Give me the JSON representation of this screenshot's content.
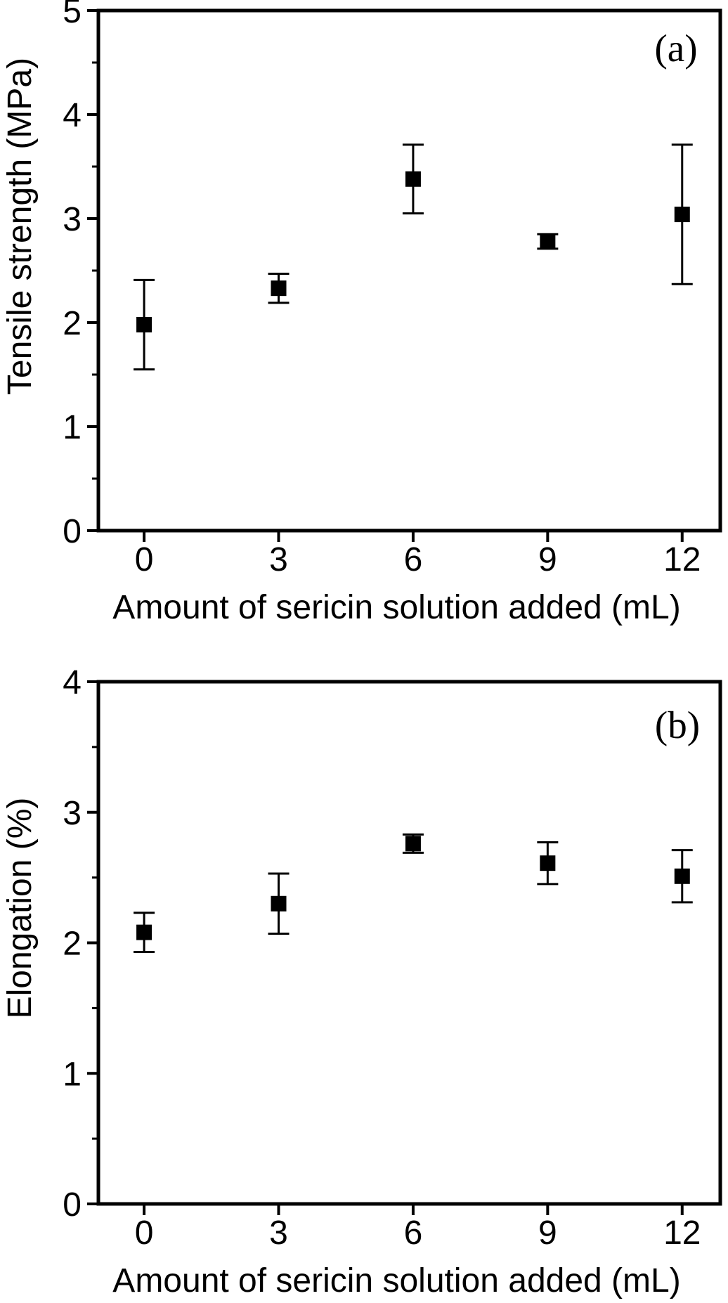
{
  "figure": {
    "background": "#ffffff",
    "foreground": "#000000",
    "panel_count": 2
  },
  "chart_data": [
    {
      "panel_label": "(a)",
      "type": "scatter",
      "title": "",
      "xlabel": "Amount of sericin solution added (mL)",
      "ylabel": "Tensile strength (MPa)",
      "x": [
        0,
        3,
        6,
        9,
        12
      ],
      "y": [
        1.98,
        2.33,
        3.38,
        2.78,
        3.04
      ],
      "y_err": [
        0.43,
        0.14,
        0.33,
        0.07,
        0.67
      ],
      "xlim": [
        -1.02,
        12.85
      ],
      "ylim": [
        0,
        5
      ],
      "x_ticks": [
        0,
        3,
        6,
        9,
        12
      ],
      "x_tick_labels": [
        "0",
        "3",
        "6",
        "9",
        "12"
      ],
      "y_ticks": [
        0,
        1,
        2,
        3,
        4,
        5
      ],
      "y_tick_labels": [
        "0",
        "1",
        "2",
        "3",
        "4",
        "5"
      ],
      "y_minor_ticks": [
        0.5,
        1.5,
        2.5,
        3.5,
        4.5
      ],
      "marker": "filled-square",
      "marker_color": "#000000",
      "error_bar_caps": true,
      "grid": false,
      "legend": "none"
    },
    {
      "panel_label": "(b)",
      "type": "scatter",
      "title": "",
      "xlabel": "Amount of sericin solution added (mL)",
      "ylabel": "Elongation (%)",
      "x": [
        0,
        3,
        6,
        9,
        12
      ],
      "y": [
        2.08,
        2.3,
        2.76,
        2.61,
        2.51
      ],
      "y_err": [
        0.15,
        0.23,
        0.07,
        0.16,
        0.2
      ],
      "xlim": [
        -1.02,
        12.85
      ],
      "ylim": [
        0,
        4
      ],
      "x_ticks": [
        0,
        3,
        6,
        9,
        12
      ],
      "x_tick_labels": [
        "0",
        "3",
        "6",
        "9",
        "12"
      ],
      "y_ticks": [
        0,
        1,
        2,
        3,
        4
      ],
      "y_tick_labels": [
        "0",
        "1",
        "2",
        "3",
        "4"
      ],
      "y_minor_ticks": [
        0.5,
        1.5,
        2.5,
        3.5
      ],
      "marker": "filled-square",
      "marker_color": "#000000",
      "error_bar_caps": true,
      "grid": false,
      "legend": "none"
    }
  ]
}
